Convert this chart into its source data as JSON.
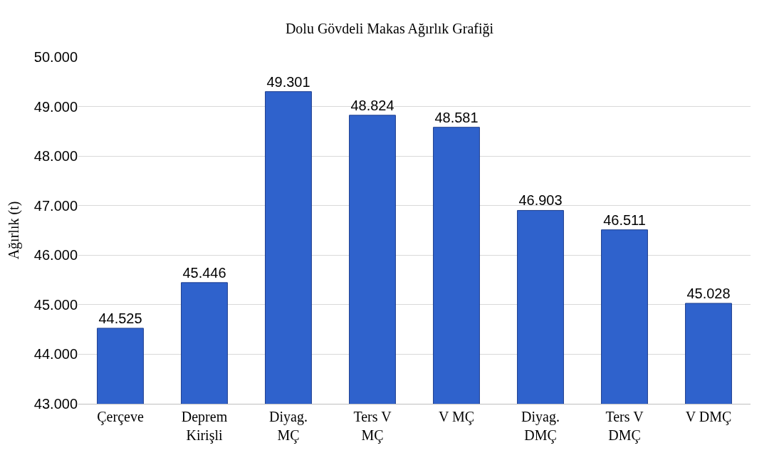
{
  "chart_data": {
    "type": "bar",
    "title": "Dolu Gövdeli Makas Ağırlık Grafiği",
    "ylabel": "Ağırlık (t)",
    "categories": [
      "Çerçeve",
      "Deprem\nKirişli",
      "Diyag.\nMÇ",
      "Ters V\nMÇ",
      "V MÇ",
      "Diyag.\nDMÇ",
      "Ters V\nDMÇ",
      "V DMÇ"
    ],
    "values": [
      44.525,
      45.446,
      49.301,
      48.824,
      48.581,
      46.903,
      46.511,
      45.028
    ],
    "value_labels": [
      "44.525",
      "45.446",
      "49.301",
      "48.824",
      "48.581",
      "46.903",
      "46.511",
      "45.028"
    ],
    "color": "#2f62cc",
    "ylim": [
      43,
      50
    ],
    "yticks": [
      {
        "value": 43,
        "label": "43.000"
      },
      {
        "value": 44,
        "label": "44.000"
      },
      {
        "value": 45,
        "label": "45.000"
      },
      {
        "value": 46,
        "label": "46.000"
      },
      {
        "value": 47,
        "label": "47.000"
      },
      {
        "value": 48,
        "label": "48.000"
      },
      {
        "value": 49,
        "label": "49.000"
      },
      {
        "value": 50,
        "label": "50.000"
      }
    ],
    "grid": "y"
  }
}
